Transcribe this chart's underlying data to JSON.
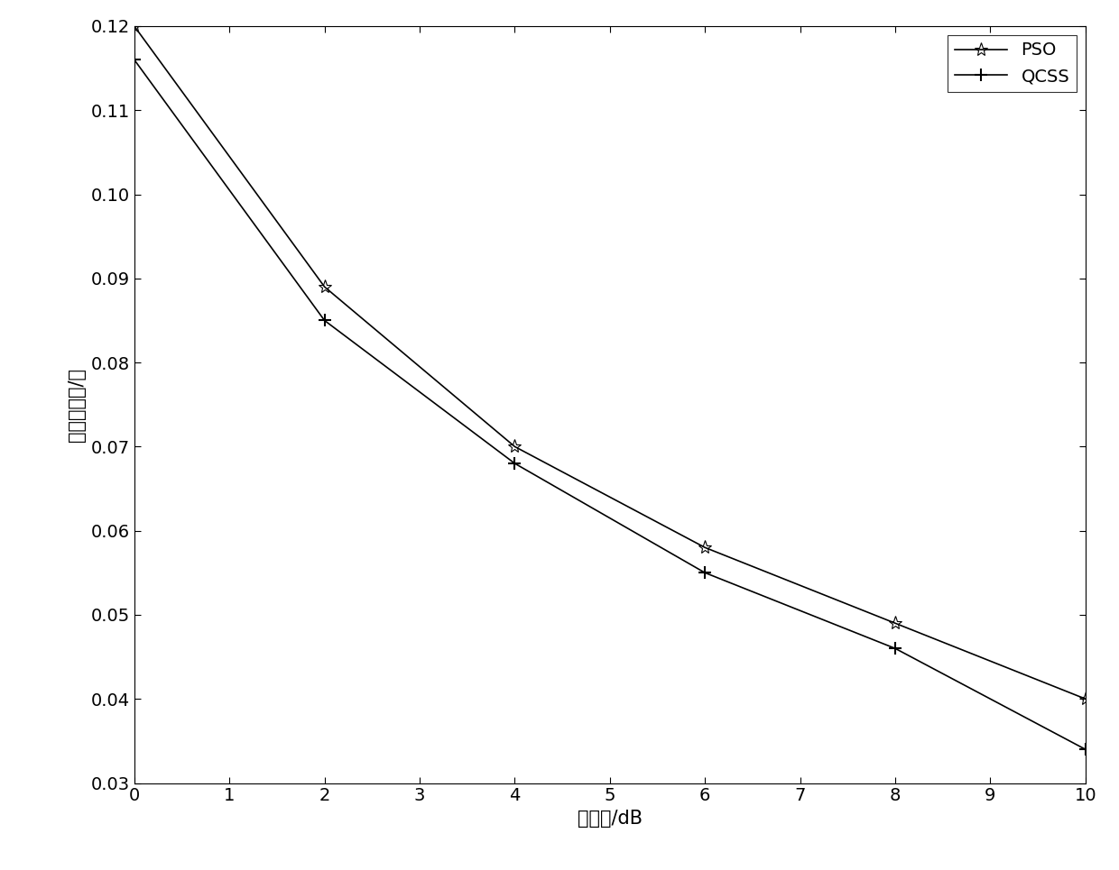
{
  "pso_x": [
    0,
    2,
    4,
    6,
    8,
    10
  ],
  "pso_y": [
    0.12,
    0.089,
    0.07,
    0.058,
    0.049,
    0.04
  ],
  "qcss_x": [
    0,
    2,
    4,
    6,
    8,
    10
  ],
  "qcss_y": [
    0.116,
    0.085,
    0.068,
    0.055,
    0.046,
    0.034
  ],
  "xlabel": "信噪比/dB",
  "ylabel": "均方根误差/度",
  "xlim": [
    0,
    10
  ],
  "ylim": [
    0.03,
    0.12
  ],
  "xticks": [
    0,
    1,
    2,
    3,
    4,
    5,
    6,
    7,
    8,
    9,
    10
  ],
  "yticks": [
    0.03,
    0.04,
    0.05,
    0.06,
    0.07,
    0.08,
    0.09,
    0.1,
    0.11,
    0.12
  ],
  "pso_label": "PSO",
  "qcss_label": "QCSS",
  "line_color": "#000000",
  "background_color": "#ffffff",
  "legend_loc": "upper right"
}
